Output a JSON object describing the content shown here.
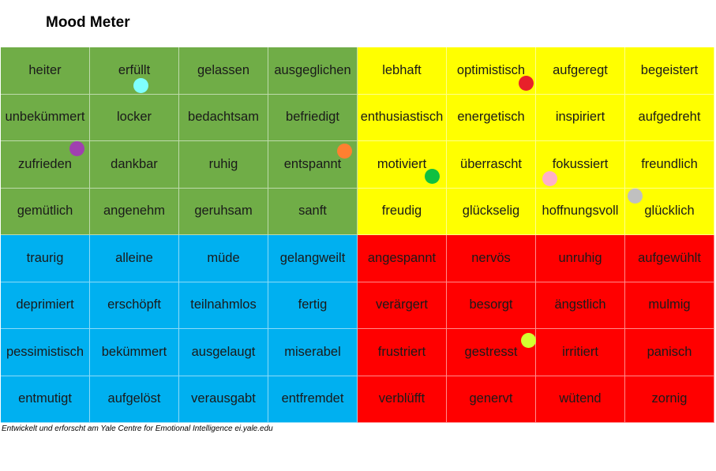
{
  "title": "Mood Meter",
  "footer": "Entwickelt und erforscht am Yale Centre for Emotional Intelligence ei.yale.edu",
  "colors": {
    "green": "#70ad47",
    "yellow": "#ffff00",
    "blue": "#00b0f0",
    "red": "#ff0000"
  },
  "grid": [
    [
      "heiter",
      "erfüllt",
      "gelassen",
      "ausgeglichen",
      "lebhaft",
      "optimistisch",
      "aufgeregt",
      "begeistert"
    ],
    [
      "unbekümmert",
      "locker",
      "bedachtsam",
      "befriedigt",
      "enthusiastisch",
      "energetisch",
      "inspiriert",
      "aufgedreht"
    ],
    [
      "zufrieden",
      "dankbar",
      "ruhig",
      "entspannt",
      "motiviert",
      "überrascht",
      "fokussiert",
      "freundlich"
    ],
    [
      "gemütlich",
      "angenehm",
      "geruhsam",
      "sanft",
      "freudig",
      "glückselig",
      "hoffnungsvoll",
      "glücklich"
    ],
    [
      "traurig",
      "alleine",
      "müde",
      "gelangweilt",
      "angespannt",
      "nervös",
      "unruhig",
      "aufgewühlt"
    ],
    [
      "deprimiert",
      "erschöpft",
      "teilnahmlos",
      "fertig",
      "verärgert",
      "besorgt",
      "ängstlich",
      "mulmig"
    ],
    [
      "pessimistisch",
      "bekümmert",
      "ausgelaugt",
      "miserabel",
      "frustriert",
      "gestresst",
      "irritiert",
      "panisch"
    ],
    [
      "entmutigt",
      "aufgelöst",
      "verausgabt",
      "entfremdet",
      "verblüfft",
      "genervt",
      "wütend",
      "zornig"
    ]
  ],
  "markers": [
    {
      "name": "cyan-marker",
      "color": "#7fffff"
    },
    {
      "name": "red-marker",
      "color": "#e8202a"
    },
    {
      "name": "purple-marker",
      "color": "#a040b0"
    },
    {
      "name": "orange-marker",
      "color": "#ff8030"
    },
    {
      "name": "green-marker",
      "color": "#10c040"
    },
    {
      "name": "pink-marker",
      "color": "#ffb0c8"
    },
    {
      "name": "gray-marker",
      "color": "#c0c0c0"
    },
    {
      "name": "lime-marker",
      "color": "#d4ff30"
    }
  ]
}
